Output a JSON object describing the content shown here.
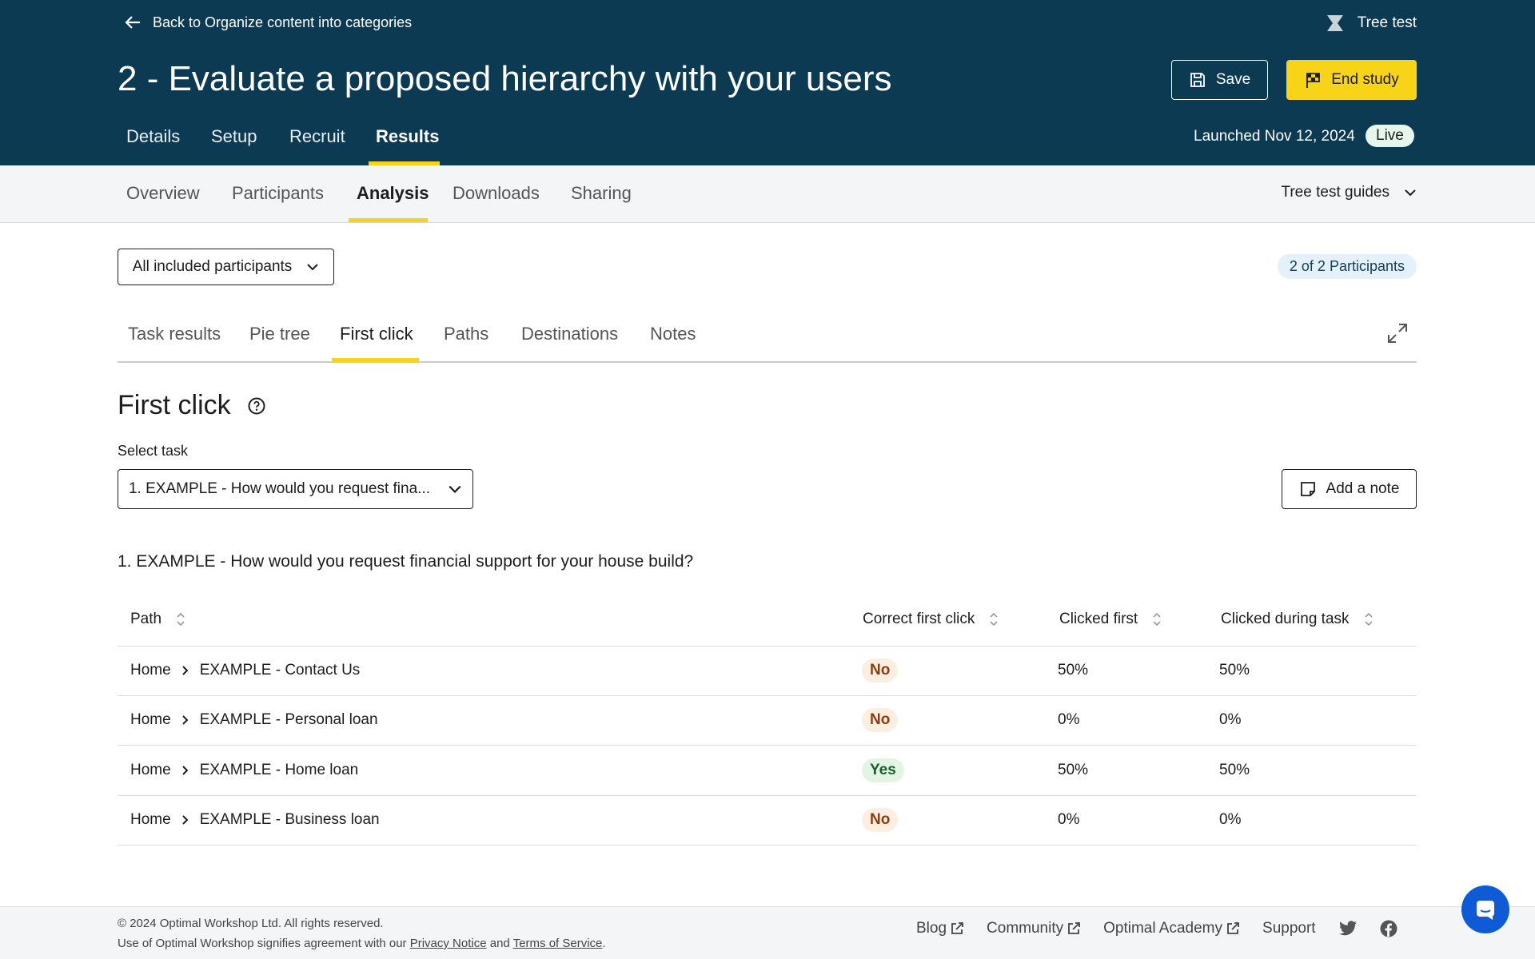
{
  "header": {
    "back": "Back to Organize content into categories",
    "product": "Tree test",
    "title": "2 - Evaluate a proposed hierarchy with your users",
    "save": "Save",
    "end_study": "End study",
    "tabs": [
      "Details",
      "Setup",
      "Recruit",
      "Results"
    ],
    "launched": "Launched Nov 12, 2024",
    "status": "Live"
  },
  "subnav": {
    "tabs": [
      "Overview",
      "Participants",
      "Analysis",
      "Downloads",
      "Sharing"
    ],
    "guides": "Tree test guides"
  },
  "filter": "All included participants",
  "participants": "2 of 2 Participants",
  "analysis_tabs": [
    "Task results",
    "Pie tree",
    "First click",
    "Paths",
    "Destinations",
    "Notes"
  ],
  "section": {
    "title": "First click",
    "select_label": "Select task",
    "selected_task": "1. EXAMPLE - How would you request fina...",
    "add_note": "Add a note",
    "question": "1. EXAMPLE - How would you request financial support for your house build?"
  },
  "table": {
    "columns": [
      "Path",
      "Correct first click",
      "Clicked first",
      "Clicked during task"
    ],
    "rows": [
      [
        "Home",
        "EXAMPLE - Contact Us",
        "No",
        "50%",
        "50%"
      ],
      [
        "Home",
        "EXAMPLE - Personal loan",
        "No",
        "0%",
        "0%"
      ],
      [
        "Home",
        "EXAMPLE - Home loan",
        "Yes",
        "50%",
        "50%"
      ],
      [
        "Home",
        "EXAMPLE - Business loan",
        "No",
        "0%",
        "0%"
      ]
    ]
  },
  "footer": {
    "copyright": "© 2024 Optimal Workshop Ltd. All rights reserved.",
    "agreement": "Use of Optimal Workshop signifies agreement with our",
    "privacy": "Privacy Notice",
    "and": "and",
    "terms": "Terms of Service",
    "period": ".",
    "links": [
      "Blog",
      "Community",
      "Optimal Academy",
      "Support"
    ]
  }
}
